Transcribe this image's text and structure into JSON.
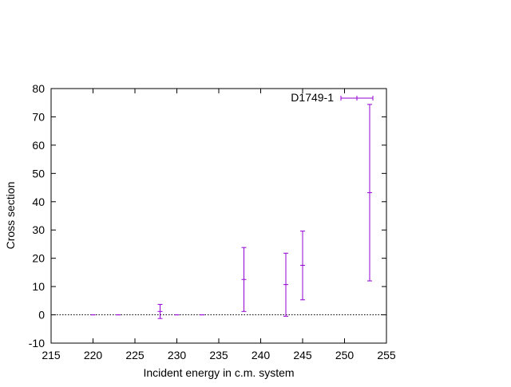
{
  "chart_data": {
    "type": "scatter",
    "xlabel": "Incident energy in c.m. system",
    "ylabel": "Cross section",
    "xlim": [
      215,
      255
    ],
    "ylim": [
      -10,
      80
    ],
    "x_ticks": [
      215,
      220,
      225,
      230,
      235,
      240,
      245,
      250,
      255
    ],
    "y_ticks": [
      -10,
      0,
      10,
      20,
      30,
      40,
      50,
      60,
      70,
      80
    ],
    "x_tick_labels": [
      "215",
      "220",
      "225",
      "230",
      "235",
      "240",
      "245",
      "250",
      "255"
    ],
    "y_tick_labels": [
      "-10",
      "0",
      "10",
      "20",
      "30",
      "40",
      "50",
      "60",
      "70",
      "80"
    ],
    "grid": false,
    "zero_line": true,
    "legend": {
      "position": "top-right"
    },
    "series": [
      {
        "name": "D1749-1",
        "color": "#9400d3",
        "points": [
          {
            "x": 220,
            "y": 0.0,
            "err_low": 0.0,
            "err_high": 0.0
          },
          {
            "x": 223,
            "y": 0.0,
            "err_low": 0.0,
            "err_high": 0.0
          },
          {
            "x": 228,
            "y": 1.2,
            "err_low": -1.3,
            "err_high": 3.7
          },
          {
            "x": 230,
            "y": 0.0,
            "err_low": 0.0,
            "err_high": 0.0
          },
          {
            "x": 233,
            "y": 0.0,
            "err_low": 0.0,
            "err_high": 0.0
          },
          {
            "x": 238,
            "y": 12.5,
            "err_low": 1.2,
            "err_high": 23.8
          },
          {
            "x": 243,
            "y": 10.7,
            "err_low": -0.5,
            "err_high": 21.8
          },
          {
            "x": 245,
            "y": 17.5,
            "err_low": 5.3,
            "err_high": 29.6
          },
          {
            "x": 253,
            "y": 43.2,
            "err_low": 12.0,
            "err_high": 74.4
          }
        ]
      }
    ]
  }
}
